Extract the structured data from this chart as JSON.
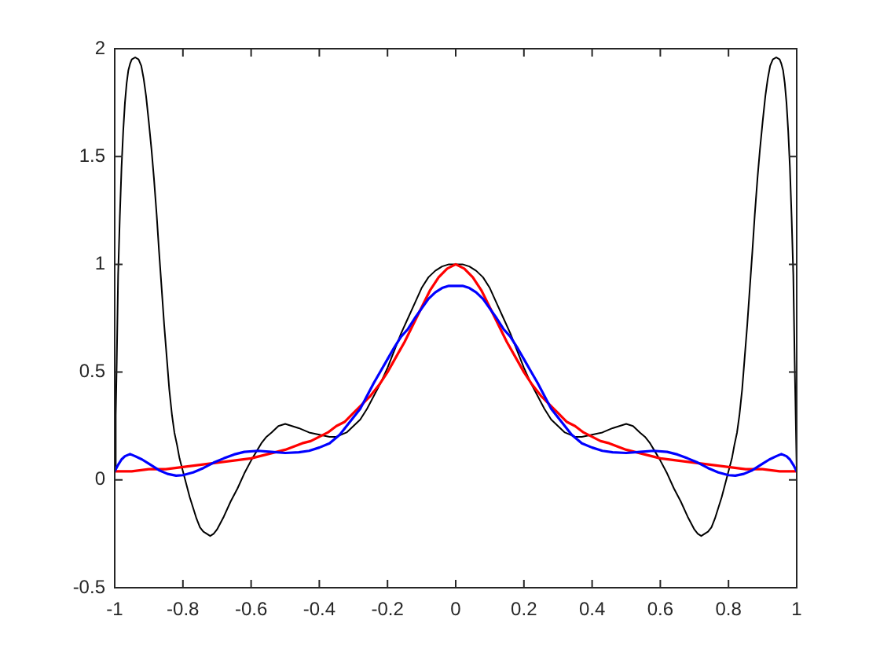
{
  "chart_data": {
    "type": "line",
    "marker": "none",
    "xlim": [
      -1,
      1
    ],
    "xticks": [
      -1,
      -0.8,
      -0.6,
      -0.4,
      -0.2,
      0,
      0.2,
      0.4,
      0.6,
      0.8,
      1
    ],
    "ylim": [
      -0.5,
      2
    ],
    "yticks": [
      -0.5,
      0,
      0.5,
      1,
      1.5,
      2
    ],
    "series": [
      {
        "color": "#000000",
        "x": [
          -1,
          -0.997,
          -0.994,
          -0.99,
          -0.985,
          -0.98,
          -0.975,
          -0.97,
          -0.965,
          -0.96,
          -0.955,
          -0.95,
          -0.94,
          -0.93,
          -0.922,
          -0.915,
          -0.908,
          -0.9,
          -0.892,
          -0.885,
          -0.877,
          -0.87,
          -0.862,
          -0.855,
          -0.847,
          -0.84,
          -0.832,
          -0.825,
          -0.817,
          -0.81,
          -0.8,
          -0.79,
          -0.78,
          -0.77,
          -0.76,
          -0.75,
          -0.74,
          -0.73,
          -0.72,
          -0.71,
          -0.7,
          -0.68,
          -0.66,
          -0.64,
          -0.62,
          -0.6,
          -0.585,
          -0.57,
          -0.555,
          -0.54,
          -0.52,
          -0.5,
          -0.48,
          -0.46,
          -0.43,
          -0.4,
          -0.37,
          -0.35,
          -0.32,
          -0.3,
          -0.28,
          -0.26,
          -0.24,
          -0.22,
          -0.2,
          -0.18,
          -0.16,
          -0.14,
          -0.12,
          -0.1,
          -0.08,
          -0.06,
          -0.04,
          -0.02,
          0,
          0.02,
          0.04,
          0.06,
          0.08,
          0.1,
          0.12,
          0.14,
          0.16,
          0.18,
          0.2,
          0.22,
          0.24,
          0.26,
          0.28,
          0.3,
          0.32,
          0.35,
          0.37,
          0.4,
          0.43,
          0.46,
          0.48,
          0.5,
          0.52,
          0.54,
          0.555,
          0.57,
          0.585,
          0.6,
          0.62,
          0.64,
          0.66,
          0.68,
          0.7,
          0.71,
          0.72,
          0.73,
          0.74,
          0.75,
          0.76,
          0.77,
          0.78,
          0.79,
          0.8,
          0.81,
          0.817,
          0.825,
          0.832,
          0.84,
          0.847,
          0.855,
          0.862,
          0.87,
          0.877,
          0.885,
          0.892,
          0.9,
          0.908,
          0.915,
          0.922,
          0.93,
          0.94,
          0.95,
          0.955,
          0.96,
          0.965,
          0.97,
          0.975,
          0.98,
          0.985,
          0.99,
          0.994,
          0.997,
          1
        ],
        "values": [
          0.04,
          0.3,
          0.55,
          0.95,
          1.22,
          1.45,
          1.62,
          1.75,
          1.84,
          1.9,
          1.93,
          1.95,
          1.96,
          1.95,
          1.92,
          1.86,
          1.78,
          1.66,
          1.53,
          1.4,
          1.23,
          1.06,
          0.88,
          0.72,
          0.56,
          0.42,
          0.3,
          0.22,
          0.16,
          0.1,
          0.04,
          -0.02,
          -0.08,
          -0.13,
          -0.18,
          -0.22,
          -0.24,
          -0.25,
          -0.26,
          -0.25,
          -0.23,
          -0.17,
          -0.1,
          -0.04,
          0.03,
          0.09,
          0.13,
          0.17,
          0.2,
          0.22,
          0.25,
          0.26,
          0.25,
          0.24,
          0.22,
          0.21,
          0.2,
          0.2,
          0.22,
          0.25,
          0.28,
          0.33,
          0.39,
          0.45,
          0.52,
          0.6,
          0.68,
          0.75,
          0.82,
          0.89,
          0.94,
          0.97,
          0.99,
          1,
          1,
          1,
          0.99,
          0.97,
          0.94,
          0.89,
          0.82,
          0.75,
          0.68,
          0.6,
          0.52,
          0.45,
          0.39,
          0.33,
          0.28,
          0.25,
          0.22,
          0.2,
          0.2,
          0.21,
          0.22,
          0.24,
          0.25,
          0.26,
          0.25,
          0.22,
          0.2,
          0.17,
          0.13,
          0.09,
          0.03,
          -0.04,
          -0.1,
          -0.17,
          -0.23,
          -0.25,
          -0.26,
          -0.25,
          -0.24,
          -0.22,
          -0.18,
          -0.13,
          -0.08,
          -0.02,
          0.04,
          0.1,
          0.16,
          0.22,
          0.3,
          0.42,
          0.56,
          0.72,
          0.88,
          1.06,
          1.23,
          1.4,
          1.53,
          1.66,
          1.78,
          1.86,
          1.92,
          1.95,
          1.96,
          1.95,
          1.93,
          1.9,
          1.84,
          1.75,
          1.62,
          1.45,
          1.22,
          0.95,
          0.55,
          0.3,
          0.04
        ]
      },
      {
        "color": "#ff0000",
        "x": [
          -1,
          -0.95,
          -0.9,
          -0.85,
          -0.8,
          -0.75,
          -0.7,
          -0.65,
          -0.6,
          -0.55,
          -0.5,
          -0.45,
          -0.425,
          -0.4,
          -0.375,
          -0.35,
          -0.325,
          -0.3,
          -0.275,
          -0.25,
          -0.225,
          -0.2,
          -0.175,
          -0.15,
          -0.125,
          -0.1,
          -0.075,
          -0.05,
          -0.025,
          0,
          0.025,
          0.05,
          0.075,
          0.1,
          0.125,
          0.15,
          0.175,
          0.2,
          0.225,
          0.25,
          0.275,
          0.3,
          0.325,
          0.35,
          0.375,
          0.4,
          0.425,
          0.45,
          0.5,
          0.55,
          0.6,
          0.65,
          0.7,
          0.75,
          0.8,
          0.85,
          0.9,
          0.95,
          1
        ],
        "values": [
          0.04,
          0.04,
          0.05,
          0.05,
          0.06,
          0.07,
          0.08,
          0.09,
          0.1,
          0.12,
          0.14,
          0.17,
          0.18,
          0.2,
          0.22,
          0.25,
          0.27,
          0.31,
          0.35,
          0.39,
          0.44,
          0.5,
          0.57,
          0.64,
          0.72,
          0.8,
          0.88,
          0.94,
          0.98,
          1,
          0.98,
          0.94,
          0.88,
          0.8,
          0.72,
          0.64,
          0.57,
          0.5,
          0.44,
          0.39,
          0.35,
          0.31,
          0.27,
          0.25,
          0.22,
          0.2,
          0.18,
          0.17,
          0.14,
          0.12,
          0.1,
          0.09,
          0.08,
          0.07,
          0.06,
          0.05,
          0.05,
          0.04,
          0.04
        ]
      },
      {
        "color": "#0000ff",
        "x": [
          -1,
          -0.99,
          -0.98,
          -0.97,
          -0.955,
          -0.94,
          -0.92,
          -0.9,
          -0.87,
          -0.845,
          -0.82,
          -0.8,
          -0.77,
          -0.74,
          -0.71,
          -0.68,
          -0.65,
          -0.62,
          -0.58,
          -0.54,
          -0.5,
          -0.46,
          -0.43,
          -0.4,
          -0.37,
          -0.34,
          -0.31,
          -0.28,
          -0.26,
          -0.24,
          -0.22,
          -0.2,
          -0.18,
          -0.16,
          -0.14,
          -0.12,
          -0.1,
          -0.08,
          -0.06,
          -0.04,
          -0.02,
          0,
          0.02,
          0.04,
          0.06,
          0.08,
          0.1,
          0.12,
          0.14,
          0.16,
          0.18,
          0.2,
          0.22,
          0.24,
          0.26,
          0.28,
          0.31,
          0.34,
          0.37,
          0.4,
          0.43,
          0.46,
          0.5,
          0.54,
          0.58,
          0.62,
          0.65,
          0.68,
          0.71,
          0.74,
          0.77,
          0.8,
          0.82,
          0.845,
          0.87,
          0.9,
          0.92,
          0.94,
          0.955,
          0.97,
          0.98,
          0.99,
          1
        ],
        "values": [
          0.04,
          0.07,
          0.095,
          0.11,
          0.12,
          0.11,
          0.095,
          0.075,
          0.045,
          0.028,
          0.02,
          0.022,
          0.035,
          0.055,
          0.08,
          0.1,
          0.118,
          0.13,
          0.135,
          0.13,
          0.125,
          0.128,
          0.135,
          0.15,
          0.17,
          0.21,
          0.27,
          0.33,
          0.39,
          0.45,
          0.505,
          0.56,
          0.615,
          0.665,
          0.7,
          0.75,
          0.795,
          0.84,
          0.87,
          0.89,
          0.9,
          0.9,
          0.9,
          0.89,
          0.87,
          0.84,
          0.795,
          0.75,
          0.7,
          0.665,
          0.615,
          0.56,
          0.505,
          0.45,
          0.39,
          0.33,
          0.27,
          0.21,
          0.17,
          0.15,
          0.135,
          0.128,
          0.125,
          0.13,
          0.135,
          0.13,
          0.118,
          0.1,
          0.08,
          0.055,
          0.035,
          0.022,
          0.02,
          0.028,
          0.045,
          0.075,
          0.095,
          0.11,
          0.12,
          0.11,
          0.095,
          0.07,
          0.04
        ]
      }
    ]
  }
}
